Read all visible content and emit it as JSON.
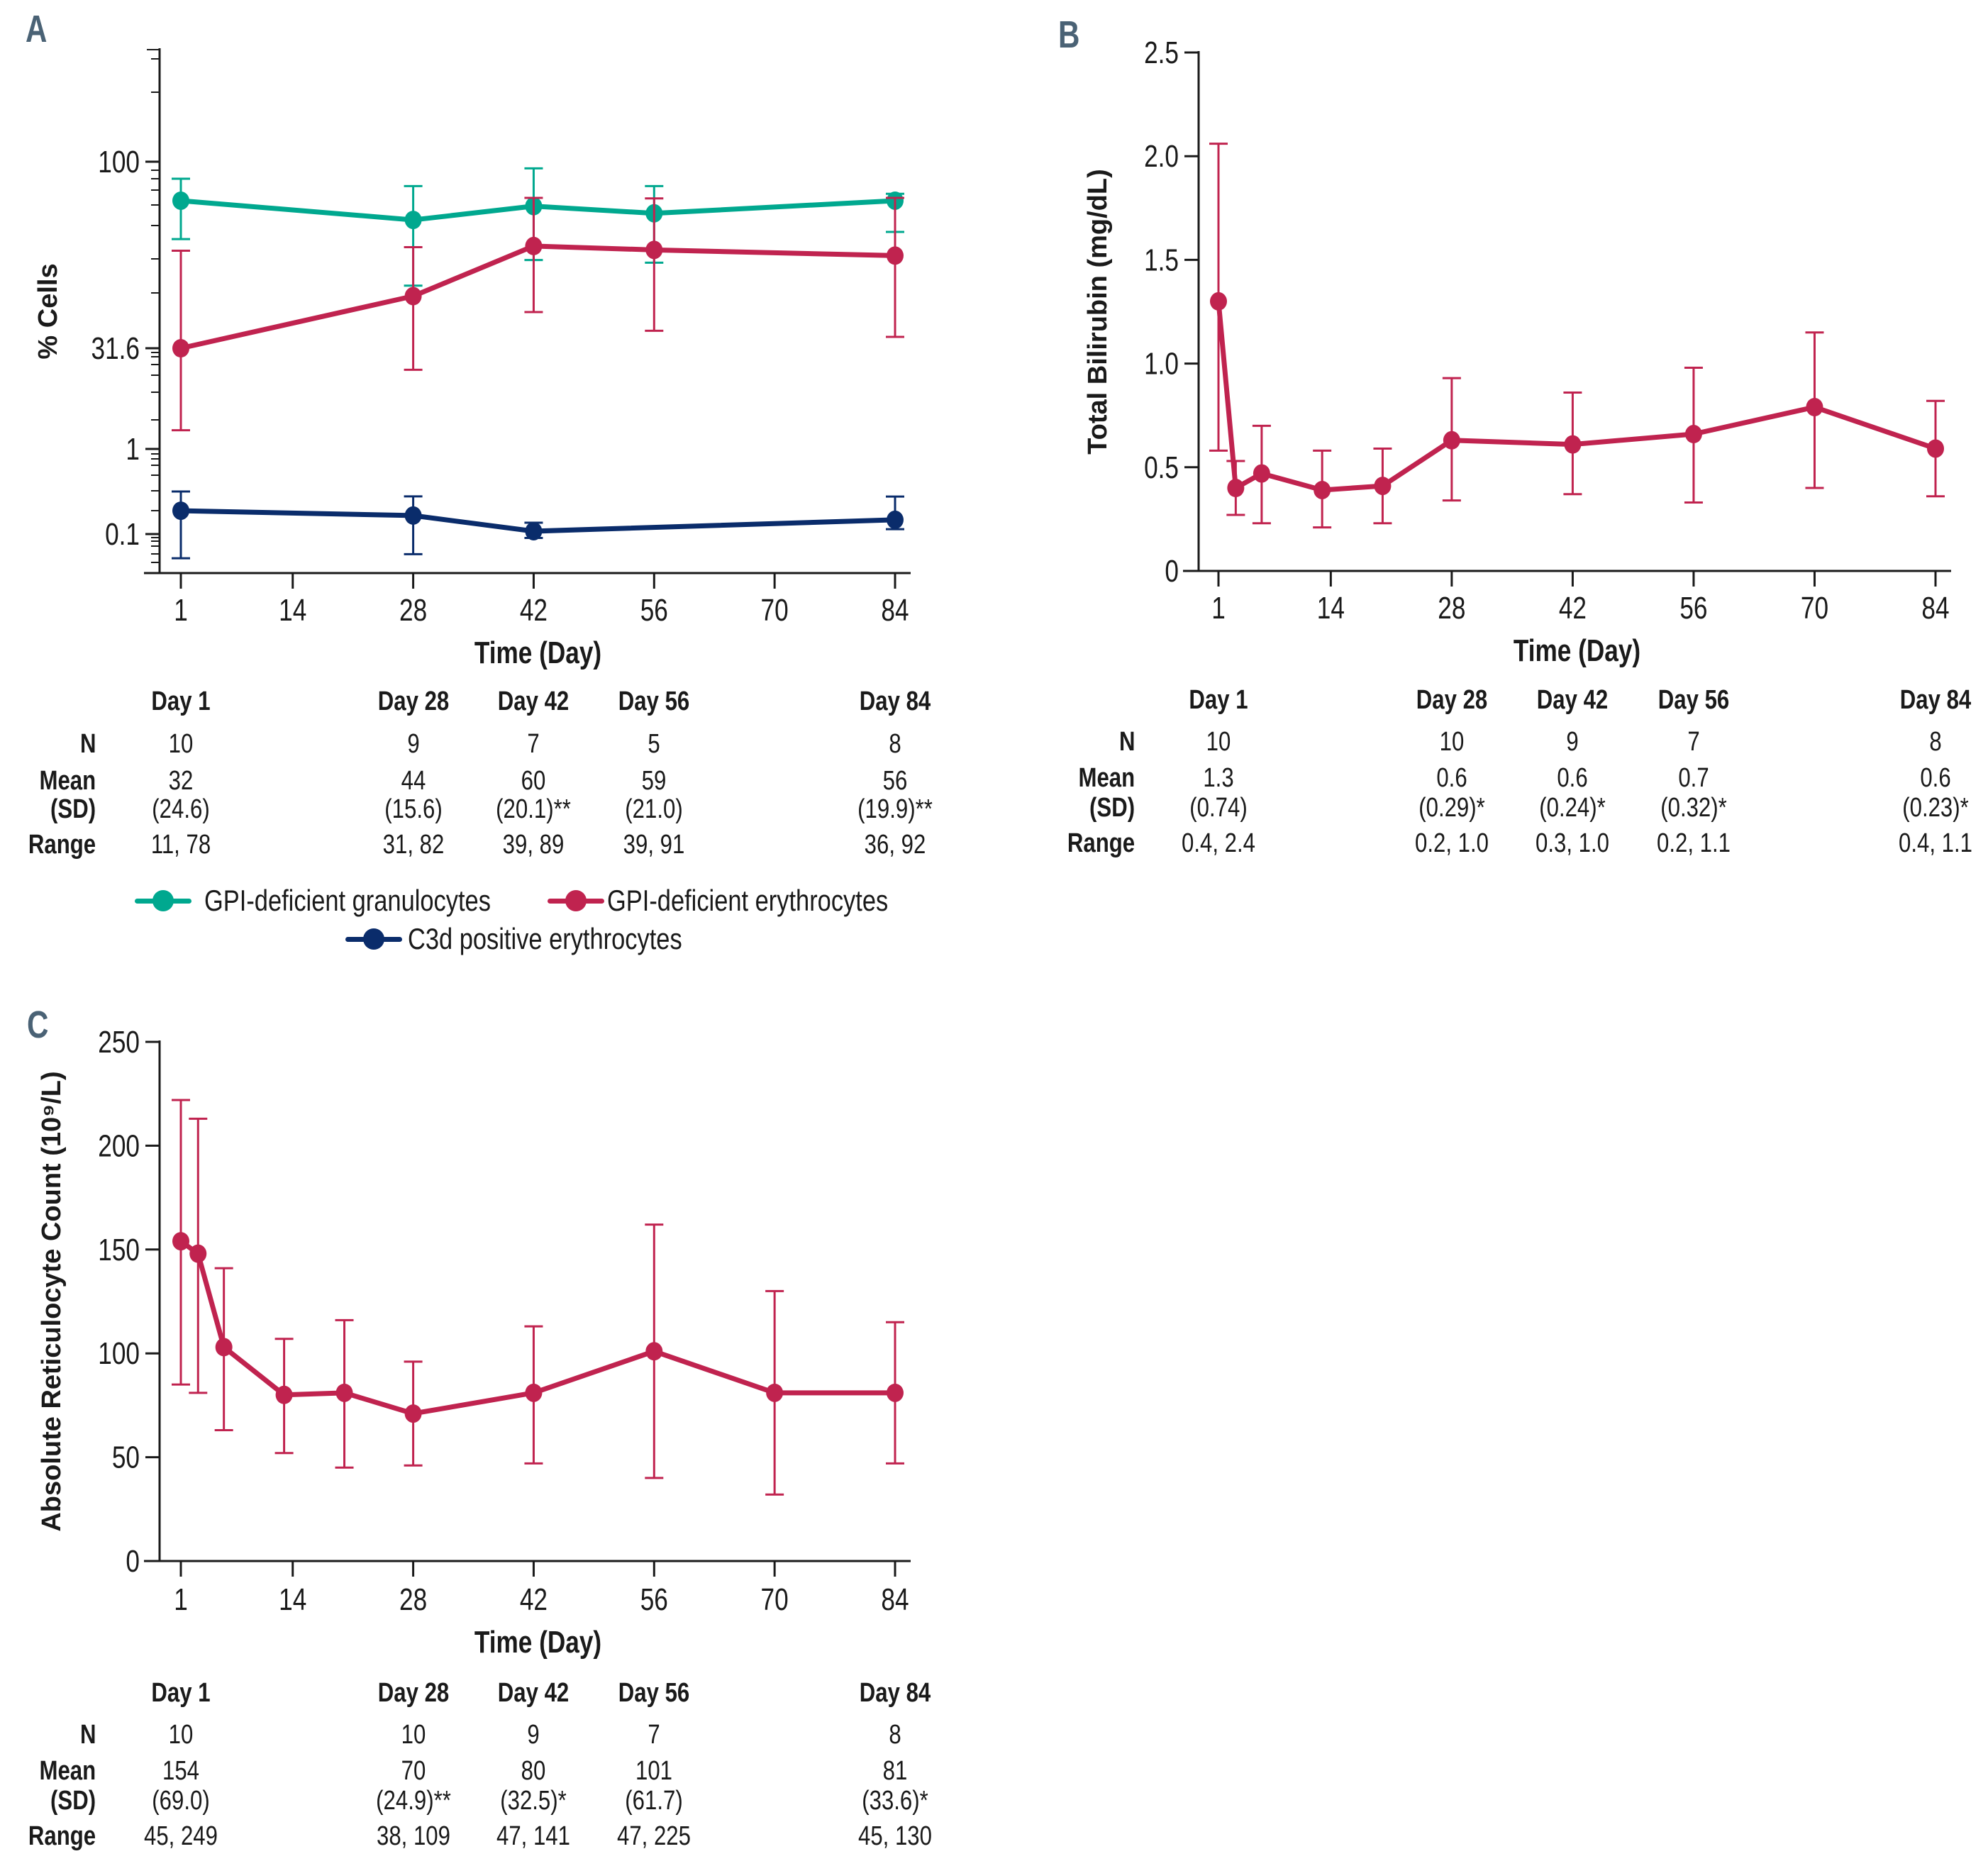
{
  "colors": {
    "granulocytes": "#00a88f",
    "erythrocytes": "#c0234f",
    "c3d": "#0a2c6b",
    "panel_label": "#4a6275",
    "axis": "#1a1a1a"
  },
  "legend": {
    "items": [
      {
        "label": "GPI-deficient granulocytes",
        "color_key": "granulocytes"
      },
      {
        "label": "GPI-deficient erythrocytes",
        "color_key": "erythrocytes"
      },
      {
        "label": "C3d positive erythrocytes",
        "color_key": "c3d"
      }
    ]
  },
  "tables": [
    {
      "panel": "A",
      "columns": [
        "Day 1",
        "Day 28",
        "Day 42",
        "Day 56",
        "Day 84"
      ],
      "column_days": [
        1,
        28,
        42,
        56,
        84
      ],
      "row_labels": {
        "n": "N",
        "mean": "Mean",
        "sd": "(SD)",
        "range": "Range"
      },
      "n": [
        "10",
        "9",
        "7",
        "5",
        "8"
      ],
      "mean": [
        "32",
        "44",
        "60",
        "59",
        "56"
      ],
      "sd": [
        "(24.6)",
        "(15.6)",
        "(20.1)**",
        "(21.0)",
        "(19.9)**"
      ],
      "range": [
        "11, 78",
        "31, 82",
        "39, 89",
        "39, 91",
        "36, 92"
      ]
    },
    {
      "panel": "B",
      "columns": [
        "Day 1",
        "Day 28",
        "Day 42",
        "Day 56",
        "Day 84"
      ],
      "column_days": [
        1,
        28,
        42,
        56,
        84
      ],
      "row_labels": {
        "n": "N",
        "mean": "Mean",
        "sd": "(SD)",
        "range": "Range"
      },
      "n": [
        "10",
        "10",
        "9",
        "7",
        "8"
      ],
      "mean": [
        "1.3",
        "0.6",
        "0.6",
        "0.7",
        "0.6"
      ],
      "sd": [
        "(0.74)",
        "(0.29)*",
        "(0.24)*",
        "(0.32)*",
        "(0.23)*"
      ],
      "range": [
        "0.4, 2.4",
        "0.2, 1.0",
        "0.3, 1.0",
        "0.2, 1.1",
        "0.4, 1.1"
      ]
    },
    {
      "panel": "C",
      "columns": [
        "Day 1",
        "Day 28",
        "Day 42",
        "Day 56",
        "Day 84"
      ],
      "column_days": [
        1,
        28,
        42,
        56,
        84
      ],
      "row_labels": {
        "n": "N",
        "mean": "Mean",
        "sd": "(SD)",
        "range": "Range"
      },
      "n": [
        "10",
        "10",
        "9",
        "7",
        "8"
      ],
      "mean": [
        "154",
        "70",
        "80",
        "101",
        "81"
      ],
      "sd": [
        "(69.0)",
        "(24.9)**",
        "(32.5)*",
        "(61.7)",
        "(33.6)*"
      ],
      "range": [
        "45, 249",
        "38, 109",
        "47, 141",
        "47, 225",
        "45, 130"
      ]
    }
  ],
  "chart_data": [
    {
      "panel": "A",
      "type": "line",
      "title": "",
      "xlabel": "Time (Day)",
      "ylabel": "% Cells",
      "yscale": "log (broken)",
      "x_ticks": [
        1,
        14,
        28,
        42,
        56,
        70,
        84
      ],
      "x_tick_labels": [
        "1",
        "14",
        "28",
        "42",
        "56",
        "70",
        "84"
      ],
      "xlim": [
        1,
        84
      ],
      "y_tick_labels": [
        "100",
        "31.6",
        "1",
        "0.1"
      ],
      "y_ticks": [
        100,
        31.6,
        1,
        0.1
      ],
      "error_bars": "SD",
      "grid": false,
      "legend_position": "bottom-center",
      "series": [
        {
          "name": "GPI-deficient granulocytes",
          "color_key": "granulocytes",
          "x": [
            1,
            28,
            42,
            56,
            84
          ],
          "y": [
            78.6,
            69.8,
            76,
            72.7,
            78.6
          ],
          "err_low": [
            62,
            46.5,
            54.5,
            53.6,
            64.8
          ],
          "err_high": [
            90,
            86,
            96,
            86,
            82
          ]
        },
        {
          "name": "GPI-deficient erythrocytes",
          "color_key": "erythrocytes",
          "x": [
            1,
            28,
            42,
            56,
            84
          ],
          "y": [
            31.6,
            43.6,
            59.4,
            58,
            56
          ],
          "err_low": [
            1.9,
            15.1,
            39.5,
            35.2,
            33.9
          ],
          "err_high": [
            57.7,
            59,
            80,
            79.7,
            80
          ]
        },
        {
          "name": "C3d positive erythrocytes",
          "color_key": "c3d",
          "x": [
            1,
            28,
            42,
            84
          ],
          "y": [
            0.188,
            0.165,
            0.108,
            0.147
          ],
          "err_low": [
            0.052,
            0.058,
            0.09,
            0.114
          ],
          "err_high": [
            0.316,
            0.277,
            0.136,
            0.276
          ]
        }
      ]
    },
    {
      "panel": "B",
      "type": "line",
      "title": "",
      "xlabel": "Time (Day)",
      "ylabel": "Total Bilirubin (mg/dL)",
      "x_ticks": [
        1,
        14,
        28,
        42,
        56,
        70,
        84
      ],
      "x_tick_labels": [
        "1",
        "14",
        "28",
        "42",
        "56",
        "70",
        "84"
      ],
      "xlim": [
        1,
        84
      ],
      "y_ticks": [
        0,
        0.5,
        1.0,
        1.5,
        2.0,
        2.5
      ],
      "y_tick_labels": [
        "0",
        "0.5",
        "1.0",
        "1.5",
        "2.0",
        "2.5"
      ],
      "ylim": [
        0,
        2.5
      ],
      "error_bars": "SD",
      "grid": false,
      "series": [
        {
          "name": "Total Bilirubin",
          "color_key": "erythrocytes",
          "x": [
            1,
            3,
            6,
            13,
            20,
            28,
            42,
            56,
            70,
            84
          ],
          "y": [
            1.3,
            0.4,
            0.47,
            0.39,
            0.41,
            0.63,
            0.61,
            0.66,
            0.79,
            0.59
          ],
          "err_low": [
            0.58,
            0.27,
            0.23,
            0.21,
            0.23,
            0.34,
            0.37,
            0.33,
            0.4,
            0.36
          ],
          "err_high": [
            2.06,
            0.53,
            0.7,
            0.58,
            0.59,
            0.93,
            0.86,
            0.98,
            1.15,
            0.82
          ]
        }
      ]
    },
    {
      "panel": "C",
      "type": "line",
      "title": "",
      "xlabel": "Time (Day)",
      "ylabel": "Absolute Reticulocyte Count (10⁹/L)",
      "x_ticks": [
        1,
        14,
        28,
        42,
        56,
        70,
        84
      ],
      "x_tick_labels": [
        "1",
        "14",
        "28",
        "42",
        "56",
        "70",
        "84"
      ],
      "xlim": [
        1,
        84
      ],
      "y_ticks": [
        0,
        50,
        100,
        150,
        200,
        250
      ],
      "y_tick_labels": [
        "0",
        "50",
        "100",
        "150",
        "200",
        "250"
      ],
      "ylim": [
        0,
        250
      ],
      "error_bars": "SD",
      "grid": false,
      "series": [
        {
          "name": "Absolute Reticulocyte Count",
          "color_key": "erythrocytes",
          "x": [
            1,
            3,
            6,
            13,
            20,
            28,
            42,
            56,
            70,
            84
          ],
          "y": [
            154,
            148,
            103,
            80,
            81,
            71,
            81,
            101,
            81,
            81
          ],
          "err_low": [
            85,
            81,
            63,
            52,
            45,
            46,
            47,
            40,
            32,
            47
          ],
          "err_high": [
            222,
            213,
            141,
            107,
            116,
            96,
            113,
            162,
            130,
            115
          ]
        }
      ]
    }
  ],
  "panel_labels": [
    "A",
    "B",
    "C"
  ]
}
